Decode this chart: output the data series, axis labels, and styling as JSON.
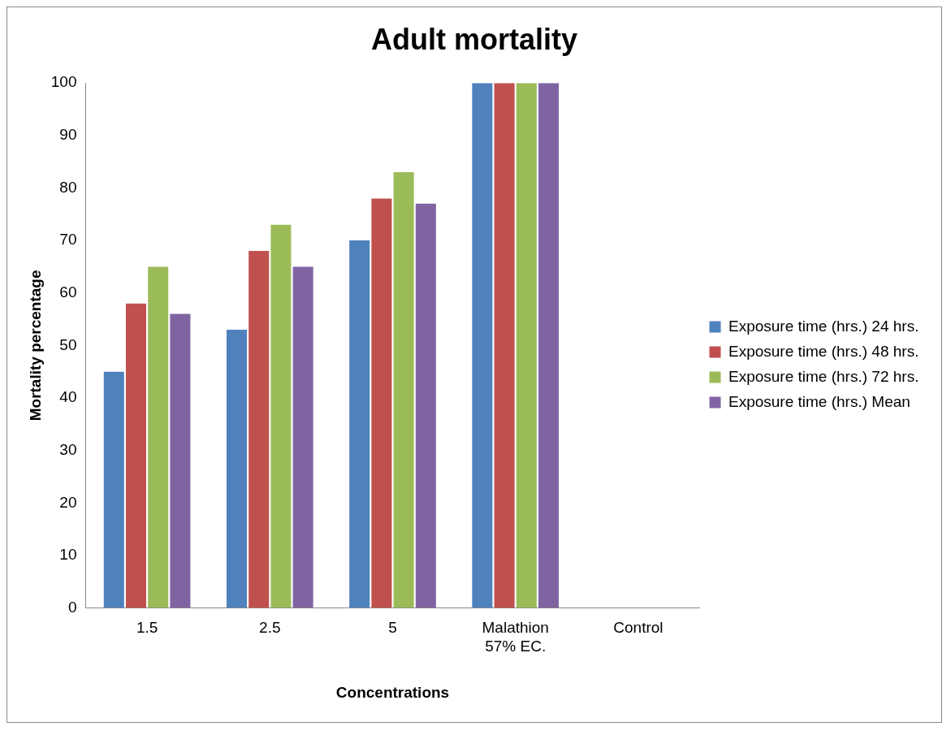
{
  "chart_data": {
    "type": "bar",
    "title": "Adult mortality",
    "xlabel": "Concentrations",
    "ylabel": "Mortality percentage",
    "categories": [
      "1.5",
      "2.5",
      "5",
      "Malathion 57% EC.",
      "Control"
    ],
    "series": [
      {
        "name": "Exposure time (hrs.) 24 hrs.",
        "color": "#4f81bd",
        "values": [
          45,
          53,
          70,
          100,
          0
        ]
      },
      {
        "name": "Exposure time (hrs.) 48 hrs.",
        "color": "#c0504d",
        "values": [
          58,
          68,
          78,
          100,
          0
        ]
      },
      {
        "name": "Exposure time (hrs.) 72 hrs.",
        "color": "#9bbb59",
        "values": [
          65,
          73,
          83,
          100,
          0
        ]
      },
      {
        "name": "Exposure time (hrs.) Mean",
        "color": "#8064a2",
        "values": [
          56,
          65,
          77,
          100,
          0
        ]
      }
    ],
    "ylim": [
      0,
      100
    ],
    "yticks": [
      0,
      10,
      20,
      30,
      40,
      50,
      60,
      70,
      80,
      90,
      100
    ],
    "grid": false,
    "legend": "right"
  }
}
